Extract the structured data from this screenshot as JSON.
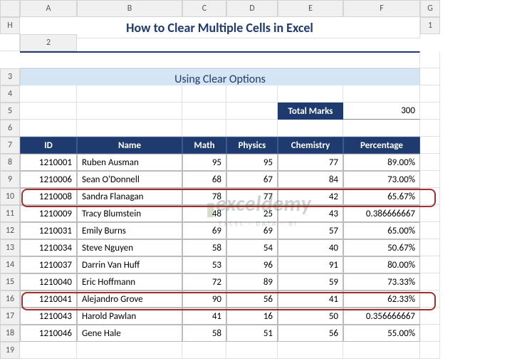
{
  "columns": [
    "A",
    "B",
    "C",
    "D",
    "E",
    "F",
    "G",
    "H"
  ],
  "rowCount": 19,
  "title": "How to Clear Multiple Cells in Excel",
  "subtitle": "Using Clear Options",
  "totalMarks": {
    "label": "Total Marks",
    "value": "300"
  },
  "headers": {
    "id": "ID",
    "name": "Name",
    "math": "Math",
    "physics": "Physics",
    "chemistry": "Chemistry",
    "percentage": "Percentage"
  },
  "rows": [
    {
      "id": "1210001",
      "name": "Ruben Ausman",
      "math": "95",
      "physics": "95",
      "chemistry": "77",
      "pct": "89.00%"
    },
    {
      "id": "1210006",
      "name": "Sean O'Donnell",
      "math": "68",
      "physics": "67",
      "chemistry": "84",
      "pct": "73.00%"
    },
    {
      "id": "1210008",
      "name": "Sandra Flanagan",
      "math": "78",
      "physics": "77",
      "chemistry": "42",
      "pct": "65.67%"
    },
    {
      "id": "1210009",
      "name": "Tracy Blumstein",
      "math": "48",
      "physics": "25",
      "chemistry": "43",
      "pct": "0.386666667"
    },
    {
      "id": "1210031",
      "name": "Emily Burns",
      "math": "69",
      "physics": "69",
      "chemistry": "57",
      "pct": "65.00%"
    },
    {
      "id": "1210034",
      "name": "Steve Nguyen",
      "math": "58",
      "physics": "54",
      "chemistry": "40",
      "pct": "50.67%"
    },
    {
      "id": "1210037",
      "name": "Darrin Van Huff",
      "math": "53",
      "physics": "96",
      "chemistry": "91",
      "pct": "80.00%"
    },
    {
      "id": "1210040",
      "name": "Eric Hoffmann",
      "math": "72",
      "physics": "89",
      "chemistry": "59",
      "pct": "73.33%"
    },
    {
      "id": "1210041",
      "name": "Alejandro Grove",
      "math": "90",
      "physics": "56",
      "chemistry": "41",
      "pct": "62.33%"
    },
    {
      "id": "1210043",
      "name": "Harold Pawlan",
      "math": "41",
      "physics": "16",
      "chemistry": "50",
      "pct": "0.356666667"
    },
    {
      "id": "1210046",
      "name": "Gene Hale",
      "math": "58",
      "physics": "51",
      "chemistry": "56",
      "pct": "55.00%"
    }
  ],
  "watermark": {
    "main": "exceldemy",
    "sub": "EXCEL · DATA · BI"
  },
  "colors": {
    "headerBg": "#1f3a6e",
    "subtitleBg": "#d6e5f3",
    "highlightBorder": "#a03030"
  }
}
